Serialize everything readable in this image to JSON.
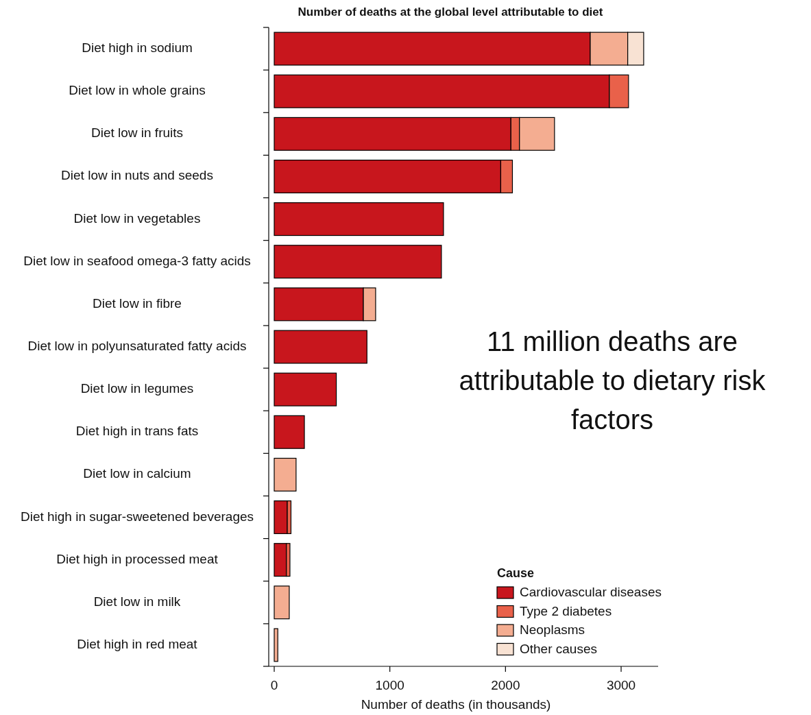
{
  "chart_data": {
    "type": "bar",
    "orientation": "horizontal",
    "stacked": true,
    "title": "Number of deaths at the global level attributable to diet",
    "xlabel": "Number of deaths (in thousands)",
    "legend_title": "Cause",
    "legend": "bottom right",
    "categories": [
      "Diet high in sodium",
      "Diet low in whole grains",
      "Diet low in fruits",
      "Diet low in nuts and seeds",
      "Diet low in vegetables",
      "Diet low in seafood omega-3 fatty acids",
      "Diet low in fibre",
      "Diet low in polyunsaturated fatty acids",
      "Diet low in legumes",
      "Diet high in trans fats",
      "Diet low in calcium",
      "Diet high in sugar-sweetened beverages",
      "Diet high in processed meat",
      "Diet low in milk",
      "Diet high in red meat"
    ],
    "series": [
      {
        "name": "Cardiovascular diseases",
        "color": "#c8161d",
        "values": [
          2733,
          2898,
          2047,
          1959,
          1464,
          1446,
          771,
          802,
          537,
          261,
          null,
          113,
          105,
          null,
          null
        ]
      },
      {
        "name": "Type 2 diabetes",
        "color": "#e9614a",
        "values": [
          null,
          166,
          74,
          101,
          null,
          null,
          null,
          null,
          null,
          null,
          null,
          32,
          31,
          null,
          null
        ]
      },
      {
        "name": "Neoplasms",
        "color": "#f4ad91",
        "values": [
          324,
          null,
          303,
          null,
          null,
          null,
          106,
          null,
          null,
          null,
          189,
          null,
          null,
          130,
          31
        ]
      },
      {
        "name": "Other causes",
        "color": "#f8e2d3",
        "values": [
          138,
          null,
          null,
          null,
          null,
          null,
          null,
          null,
          null,
          null,
          null,
          null,
          null,
          null,
          null
        ]
      }
    ],
    "xlim": [
      0,
      3320
    ],
    "xticks": [
      0,
      1000,
      2000,
      3000
    ],
    "annotations": [
      "11 million deaths are attributable to dietary risk factors"
    ]
  }
}
